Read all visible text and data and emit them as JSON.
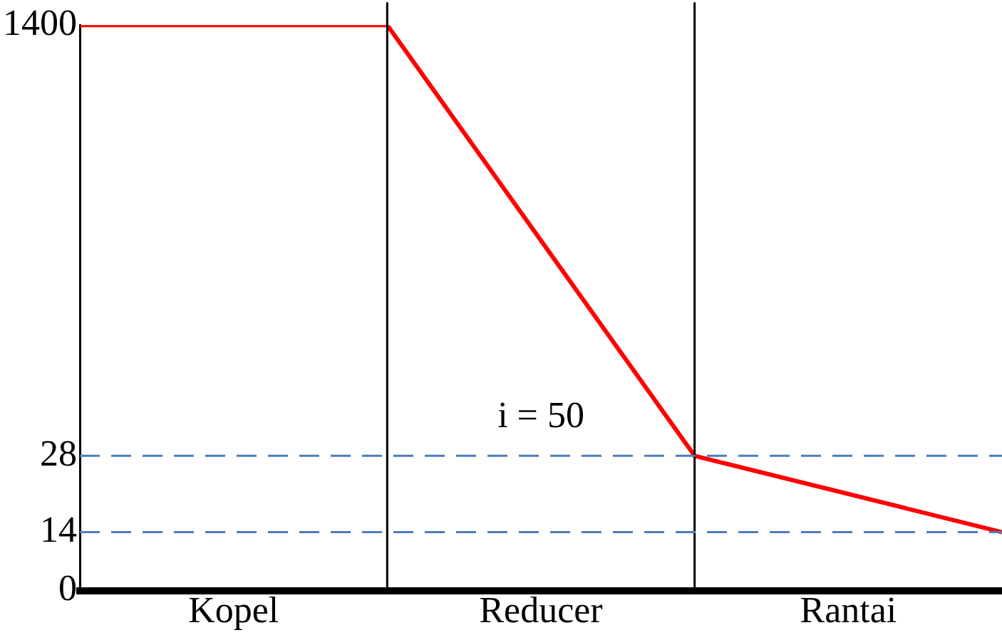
{
  "chart_data": {
    "type": "line",
    "categories": [
      null,
      "Kopel",
      null,
      "Reducer",
      null,
      "Rantai",
      null
    ],
    "series": [
      {
        "color": "#ff0000",
        "values": [
          1400,
          null,
          1400,
          null,
          28,
          null,
          14
        ]
      }
    ],
    "log": true,
    "ylim": [
      0,
      1400
    ],
    "yticks": [
      0,
      14,
      28,
      1400
    ],
    "ref_lines": [
      {
        "axis": "y",
        "value": 28,
        "color": "#4a7ebb",
        "line_style": "dashed"
      },
      {
        "axis": "y",
        "value": 14,
        "color": "#4a7ebb",
        "line_style": "dashed"
      }
    ],
    "annotations": [
      "i = 50"
    ],
    "legend": false,
    "marker": "none",
    "line_style": "solid"
  }
}
